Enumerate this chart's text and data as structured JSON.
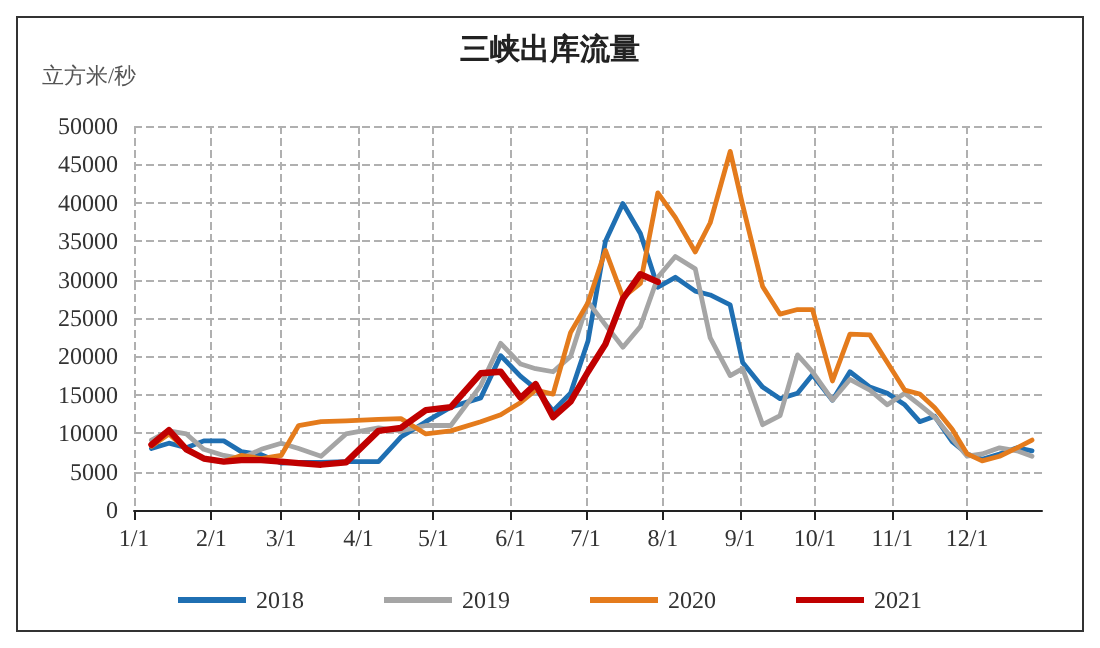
{
  "chart_data": {
    "type": "line",
    "title": "三峡出库流量",
    "ylabel": "立方米/秒",
    "x": [
      "--01-08",
      "--01-15",
      "--01-22",
      "--01-29",
      "--02-06",
      "--02-13",
      "--02-21",
      "--03-01",
      "--03-08",
      "--03-17",
      "--03-27",
      "--04-09",
      "--04-18",
      "--04-28",
      "--05-08",
      "--05-20",
      "--05-28",
      "--06-05",
      "--06-11",
      "--06-18",
      "--06-25",
      "--07-02",
      "--07-09",
      "--07-16",
      "--07-23",
      "--07-30",
      "--08-06",
      "--08-14",
      "--08-20",
      "--08-28",
      "--09-02",
      "--09-10",
      "--09-17",
      "--09-24",
      "--09-30",
      "--10-08",
      "--10-15",
      "--10-23",
      "--10-30",
      "--11-06",
      "--11-12",
      "--11-18",
      "--11-25",
      "--12-01",
      "--12-07",
      "--12-14",
      "--12-21",
      "--12-27"
    ],
    "series": [
      {
        "name": "2018",
        "color": "#1f6fb2",
        "values": [
          8000,
          8700,
          8100,
          9000,
          9000,
          7600,
          7200,
          6100,
          6200,
          6200,
          6300,
          6300,
          9500,
          11500,
          13400,
          14600,
          20100,
          17400,
          15800,
          12900,
          15200,
          22000,
          35000,
          39900,
          36000,
          29000,
          30300,
          28500,
          28000,
          26700,
          19200,
          16000,
          14500,
          15200,
          17600,
          14300,
          18000,
          16000,
          15200,
          13700,
          11500,
          12200,
          8900,
          7300,
          6600,
          7300,
          8100,
          7700
        ]
      },
      {
        "name": "2019",
        "color": "#a5a5a5",
        "values": [
          9100,
          10300,
          9900,
          7900,
          7100,
          6700,
          7900,
          8700,
          8000,
          7000,
          9900,
          10700,
          10300,
          11000,
          11000,
          16200,
          21700,
          19000,
          18400,
          18000,
          20000,
          27100,
          24100,
          21200,
          23900,
          30300,
          33000,
          31400,
          22400,
          17500,
          18400,
          11100,
          12300,
          20200,
          18000,
          14300,
          17000,
          15600,
          13700,
          15200,
          13700,
          12100,
          9300,
          7000,
          7300,
          8100,
          7700,
          7000
        ]
      },
      {
        "name": "2020",
        "color": "#e47b1c",
        "values": [
          8300,
          9900,
          7900,
          6700,
          6300,
          7100,
          6700,
          7100,
          11000,
          11500,
          11600,
          11800,
          11900,
          9900,
          10300,
          11500,
          12400,
          14000,
          15600,
          15100,
          23100,
          27000,
          33800,
          27700,
          29500,
          41300,
          38100,
          33600,
          37400,
          46700,
          39700,
          29100,
          25500,
          26100,
          26100,
          16800,
          22900,
          22800,
          19200,
          15600,
          15100,
          13300,
          10500,
          7300,
          6400,
          7000,
          8100,
          9100
        ]
      },
      {
        "name": "2021",
        "color": "#c00000",
        "values": [
          8500,
          10400,
          7900,
          6700,
          6300,
          6500,
          6500,
          6300,
          6100,
          5900,
          6200,
          10300,
          10700,
          13000,
          13400,
          17800,
          18000,
          14600,
          16400,
          12100,
          14100,
          18000,
          21600,
          27500,
          30700,
          29700,
          null,
          null,
          null,
          null,
          null,
          null,
          null,
          null,
          null,
          null,
          null,
          null,
          null,
          null,
          null,
          null,
          null,
          null,
          null,
          null,
          null,
          null
        ]
      }
    ],
    "xlim": [
      "--01-01",
      "--12-31"
    ],
    "xticks": [
      {
        "value": "--01-01",
        "label": "1/1"
      },
      {
        "value": "--02-01",
        "label": "2/1"
      },
      {
        "value": "--03-01",
        "label": "3/1"
      },
      {
        "value": "--04-01",
        "label": "4/1"
      },
      {
        "value": "--05-01",
        "label": "5/1"
      },
      {
        "value": "--06-01",
        "label": "6/1"
      },
      {
        "value": "--07-01",
        "label": "7/1"
      },
      {
        "value": "--08-01",
        "label": "8/1"
      },
      {
        "value": "--09-01",
        "label": "9/1"
      },
      {
        "value": "--10-01",
        "label": "10/1"
      },
      {
        "value": "--11-01",
        "label": "11/1"
      },
      {
        "value": "--12-01",
        "label": "12/1"
      }
    ],
    "ylim": [
      0,
      50000
    ],
    "yticks": [
      0,
      5000,
      10000,
      15000,
      20000,
      25000,
      30000,
      35000,
      40000,
      45000,
      50000
    ],
    "grid": true,
    "legend": "bottom",
    "marker": "none",
    "line_style": "solid"
  }
}
